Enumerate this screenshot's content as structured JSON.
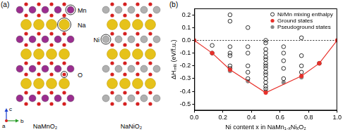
{
  "panel_a": {
    "label": "(a)",
    "atom_labels": {
      "mn": "Mn",
      "na": "Na",
      "ni": "Ni",
      "o": "O"
    },
    "axis_labels": {
      "up": "c",
      "right": "b",
      "out": "a"
    },
    "structures": [
      "NaMnO₂",
      "NaNiO₂"
    ]
  },
  "chart_data": {
    "panel_label": "(b)",
    "type": "scatter",
    "x_label": "Ni content x in NaMn₁₋ₓNiₓO₂",
    "y_label": "ΔHₘᵢₓ (eV/f.u.)",
    "xlim": [
      0,
      1
    ],
    "xticks": [
      {
        "value": 0,
        "label": "0.0"
      },
      0.2,
      0.4,
      0.6,
      0.8,
      {
        "value": 1,
        "label": "1.0"
      }
    ],
    "ylim": [
      -0.55,
      0.25
    ],
    "yticks": [
      -0.5,
      -0.4,
      -0.3,
      -0.2,
      -0.1,
      {
        "value": 0,
        "label": "0.0"
      },
      0.1,
      0.2
    ],
    "grid": false,
    "legend": "upper right",
    "hline": 0,
    "series": [
      {
        "name": "Ni/Mn mixing enthalpy",
        "color": "#000000",
        "marker": "open_circle",
        "x": [
          0.125,
          0.125,
          0.25,
          0.25,
          0.25,
          0.25,
          0.25,
          0.25,
          0.25,
          0.375,
          0.375,
          0.375,
          0.375,
          0.375,
          0.375,
          0.5,
          0.5,
          0.5,
          0.5,
          0.5,
          0.5,
          0.5,
          0.5,
          0.5,
          0.5,
          0.5,
          0.5,
          0.5,
          0.5,
          0.5,
          0.625,
          0.625,
          0.625,
          0.625,
          0.625,
          0.75,
          0.75,
          0.75,
          0.75,
          0.875
        ],
        "values": [
          -0.04,
          -0.1,
          0.2,
          0.15,
          -0.05,
          -0.1,
          -0.12,
          -0.2,
          -0.22,
          0.1,
          -0.05,
          -0.1,
          -0.2,
          -0.25,
          -0.3,
          0.0,
          -0.02,
          -0.07,
          -0.1,
          -0.13,
          -0.15,
          -0.18,
          -0.2,
          -0.22,
          -0.25,
          -0.27,
          -0.3,
          -0.33,
          -0.36,
          -0.38,
          -0.05,
          -0.1,
          -0.16,
          -0.22,
          -0.3,
          0.02,
          -0.12,
          -0.2,
          -0.25,
          -0.18
        ]
      },
      {
        "name": "Ground states",
        "type": "line",
        "color": "#e8302a",
        "marker": "circle",
        "line_style": "solid",
        "x": [
          0,
          0.125,
          0.25,
          0.5,
          0.75,
          0.875,
          1
        ],
        "values": [
          0,
          -0.1,
          -0.23,
          -0.41,
          -0.28,
          -0.18,
          0
        ]
      },
      {
        "name": "Pseudoground states",
        "color": "#888888",
        "marker": "circle",
        "x": [
          0.25,
          0.375,
          0.5,
          0.625,
          0.75
        ],
        "values": [
          -0.24,
          -0.32,
          -0.4,
          -0.33,
          -0.29
        ]
      }
    ]
  }
}
